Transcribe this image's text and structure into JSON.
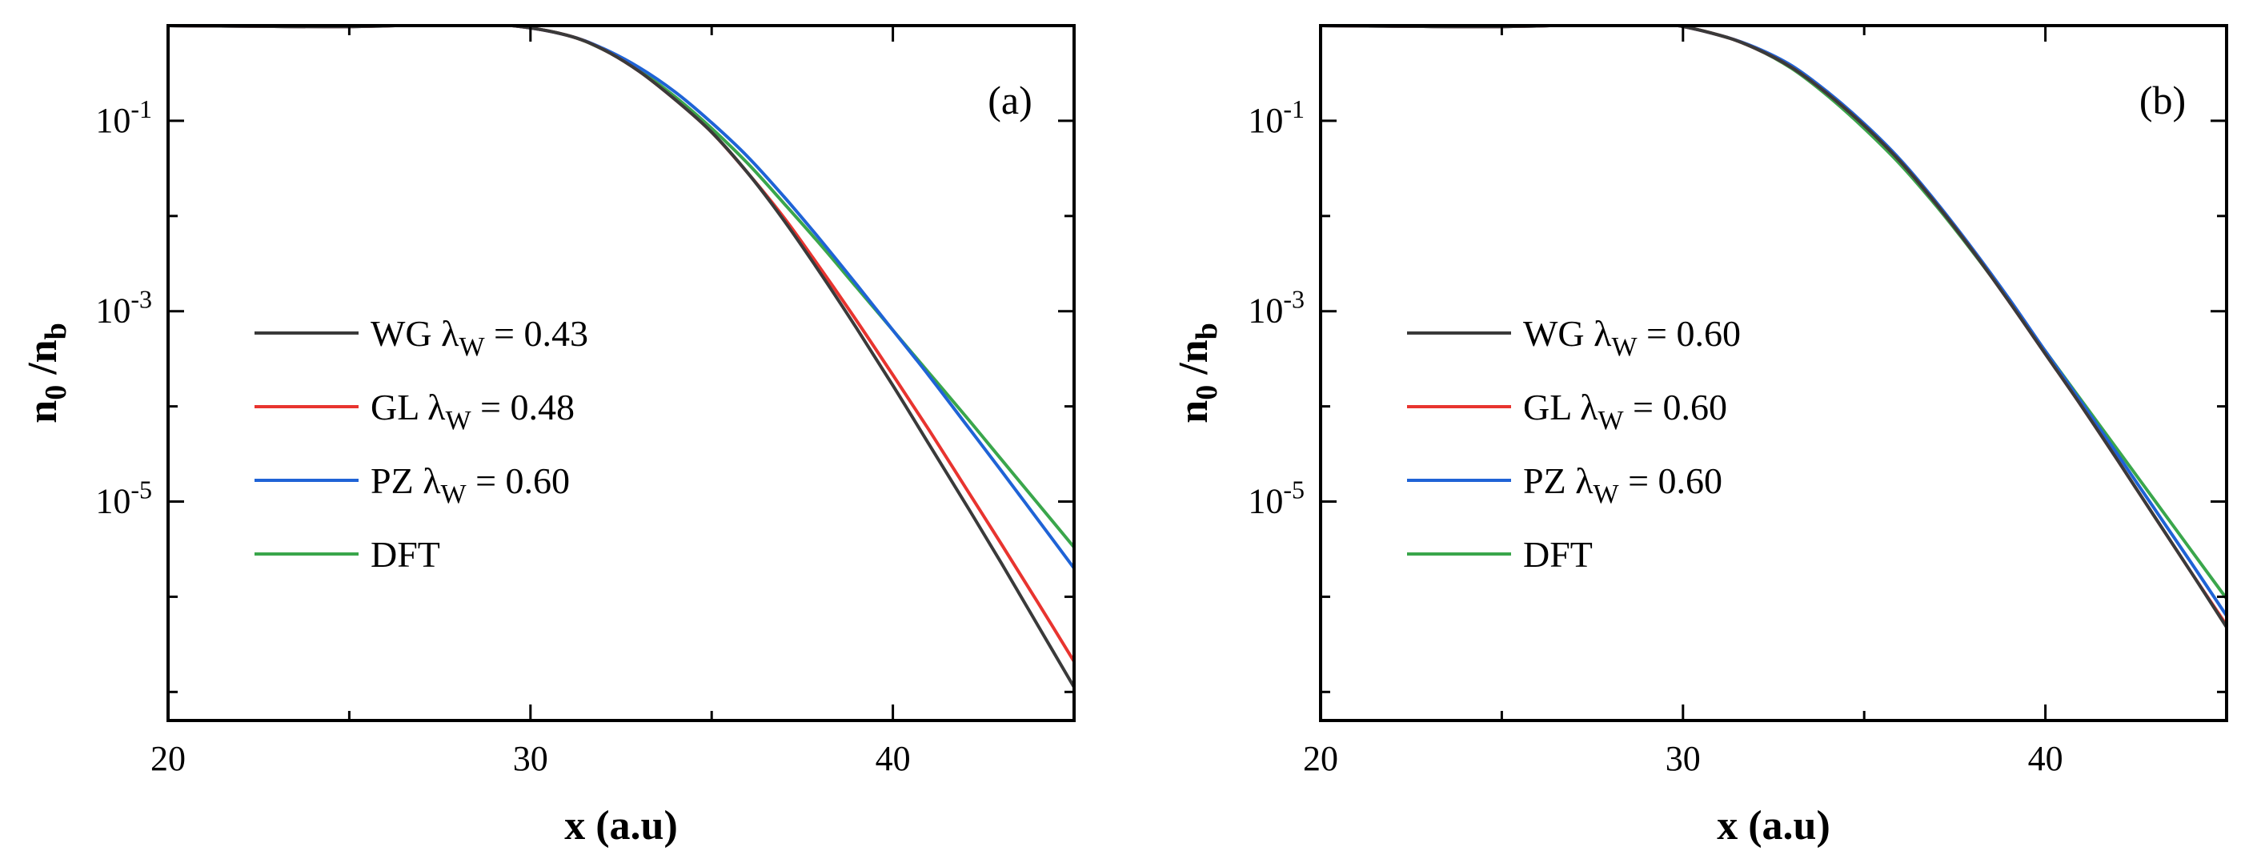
{
  "colors": {
    "WG": "#3a3a3a",
    "GL": "#e8342f",
    "PZ": "#1f63d6",
    "DFT": "#3aa64b"
  },
  "chart_data": [
    {
      "type": "line",
      "panel_label": "(a)",
      "xlabel": "x (a.u)",
      "ylabel_main": "n",
      "ylabel_sub1": "0",
      "ylabel_slash": " /n",
      "ylabel_sub2": "b",
      "xlim": [
        20,
        45
      ],
      "ylim_log10": [
        -7.3,
        0.0
      ],
      "y_scale": "log10",
      "x_ticks": [
        20,
        30,
        40
      ],
      "x_tick_labels": [
        "20",
        "30",
        "40"
      ],
      "y_ticks": [
        {
          "base": "10",
          "exp": "-1",
          "value": -1
        },
        {
          "base": "10",
          "exp": "-3",
          "value": -3
        },
        {
          "base": "10",
          "exp": "-5",
          "value": -5
        }
      ],
      "legend_position": "middle-left",
      "series": [
        {
          "key": "WG",
          "name": "WG",
          "lambda_prefix": "λ",
          "lambda_sub": "W",
          "lambda_value": " = 0.43",
          "x": [
            20,
            25,
            28,
            29.5,
            31,
            32,
            33,
            34,
            35,
            36,
            37,
            38,
            39,
            40,
            41,
            42,
            43,
            44,
            45
          ],
          "log10_y": [
            0.0,
            -0.01,
            0.02,
            0.0,
            -0.1,
            -0.25,
            -0.48,
            -0.78,
            -1.12,
            -1.55,
            -2.05,
            -2.6,
            -3.18,
            -3.78,
            -4.4,
            -5.02,
            -5.65,
            -6.3,
            -6.95
          ]
        },
        {
          "key": "GL",
          "name": "GL",
          "lambda_prefix": "λ",
          "lambda_sub": "W",
          "lambda_value": " = 0.48",
          "x": [
            20,
            25,
            28,
            29.5,
            31,
            32,
            33,
            34,
            35,
            36,
            37,
            38,
            39,
            40,
            41,
            42,
            43,
            44,
            45
          ],
          "log10_y": [
            0.0,
            -0.01,
            0.02,
            0.0,
            -0.1,
            -0.25,
            -0.48,
            -0.78,
            -1.12,
            -1.55,
            -2.02,
            -2.55,
            -3.1,
            -3.67,
            -4.25,
            -4.85,
            -5.45,
            -6.06,
            -6.68
          ]
        },
        {
          "key": "PZ",
          "name": "PZ",
          "lambda_prefix": "λ",
          "lambda_sub": "W",
          "lambda_value": " = 0.60",
          "x": [
            20,
            25,
            28,
            29.5,
            31,
            32,
            33,
            34,
            35,
            36,
            37,
            38,
            39,
            40,
            41,
            42,
            43,
            44,
            45
          ],
          "log10_y": [
            0.0,
            -0.01,
            0.02,
            0.0,
            -0.1,
            -0.24,
            -0.44,
            -0.7,
            -1.02,
            -1.38,
            -1.8,
            -2.25,
            -2.72,
            -3.2,
            -3.68,
            -4.18,
            -4.68,
            -5.19,
            -5.7
          ]
        },
        {
          "key": "DFT",
          "name": "DFT",
          "lambda_prefix": "",
          "lambda_sub": "",
          "lambda_value": "",
          "x": [
            20,
            25,
            28,
            29.5,
            31,
            32,
            33,
            34,
            35,
            36,
            37,
            38,
            39,
            40,
            41,
            42,
            43,
            44,
            45
          ],
          "log10_y": [
            0.0,
            -0.01,
            0.02,
            0.0,
            -0.1,
            -0.25,
            -0.47,
            -0.75,
            -1.08,
            -1.45,
            -1.87,
            -2.3,
            -2.75,
            -3.2,
            -3.65,
            -4.1,
            -4.56,
            -5.02,
            -5.48
          ]
        }
      ]
    },
    {
      "type": "line",
      "panel_label": "(b)",
      "xlabel": "x (a.u)",
      "ylabel_main": "n",
      "ylabel_sub1": "0",
      "ylabel_slash": " /n",
      "ylabel_sub2": "b",
      "xlim": [
        20,
        45
      ],
      "ylim_log10": [
        -7.3,
        0.0
      ],
      "y_scale": "log10",
      "x_ticks": [
        20,
        30,
        40
      ],
      "x_tick_labels": [
        "20",
        "30",
        "40"
      ],
      "y_ticks": [
        {
          "base": "10",
          "exp": "-1",
          "value": -1
        },
        {
          "base": "10",
          "exp": "-3",
          "value": -3
        },
        {
          "base": "10",
          "exp": "-5",
          "value": -5
        }
      ],
      "legend_position": "middle-left",
      "series": [
        {
          "key": "WG",
          "name": "WG",
          "lambda_prefix": "λ",
          "lambda_sub": "W",
          "lambda_value": " = 0.60",
          "x": [
            20,
            25,
            28,
            29.5,
            31,
            32,
            33,
            34,
            35,
            36,
            37,
            38,
            39,
            40,
            41,
            42,
            43,
            44,
            45
          ],
          "log10_y": [
            0.0,
            -0.01,
            0.02,
            0.02,
            -0.1,
            -0.24,
            -0.44,
            -0.72,
            -1.05,
            -1.43,
            -1.88,
            -2.37,
            -2.9,
            -3.45,
            -4.0,
            -4.57,
            -5.15,
            -5.73,
            -6.32
          ]
        },
        {
          "key": "GL",
          "name": "GL",
          "lambda_prefix": "λ",
          "lambda_sub": "W",
          "lambda_value": " = 0.60",
          "x": [
            20,
            25,
            28,
            29.5,
            31,
            32,
            33,
            34,
            35,
            36,
            37,
            38,
            39,
            40,
            41,
            42,
            43,
            44,
            45
          ],
          "log10_y": [
            0.0,
            -0.01,
            0.02,
            0.02,
            -0.1,
            -0.24,
            -0.44,
            -0.72,
            -1.05,
            -1.43,
            -1.88,
            -2.37,
            -2.9,
            -3.45,
            -4.0,
            -4.57,
            -5.15,
            -5.73,
            -6.3
          ]
        },
        {
          "key": "PZ",
          "name": "PZ",
          "lambda_prefix": "λ",
          "lambda_sub": "W",
          "lambda_value": " = 0.60",
          "x": [
            20,
            25,
            28,
            29.5,
            31,
            32,
            33,
            34,
            35,
            36,
            37,
            38,
            39,
            40,
            41,
            42,
            43,
            44,
            45
          ],
          "log10_y": [
            0.0,
            -0.01,
            0.02,
            0.02,
            -0.1,
            -0.23,
            -0.42,
            -0.7,
            -1.03,
            -1.41,
            -1.86,
            -2.35,
            -2.87,
            -3.42,
            -3.96,
            -4.51,
            -5.07,
            -5.63,
            -6.2
          ]
        },
        {
          "key": "DFT",
          "name": "DFT",
          "lambda_prefix": "",
          "lambda_sub": "",
          "lambda_value": "",
          "x": [
            20,
            25,
            28,
            29.5,
            31,
            32,
            33,
            34,
            35,
            36,
            37,
            38,
            39,
            40,
            41,
            42,
            43,
            44,
            45
          ],
          "log10_y": [
            0.0,
            -0.01,
            0.02,
            0.02,
            -0.1,
            -0.24,
            -0.45,
            -0.74,
            -1.08,
            -1.46,
            -1.9,
            -2.38,
            -2.89,
            -3.42,
            -3.94,
            -4.46,
            -4.98,
            -5.5,
            -6.02
          ]
        }
      ]
    }
  ]
}
